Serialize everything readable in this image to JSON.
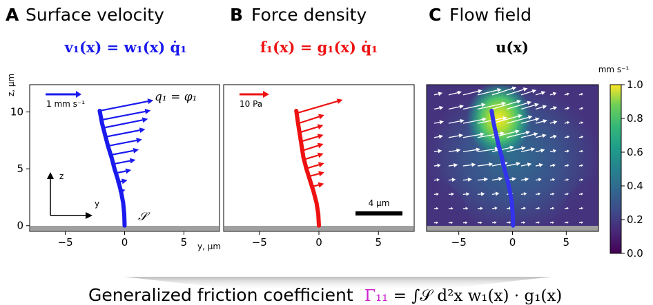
{
  "colors": {
    "velocity": "#1a1aee",
    "force": "#ee1111",
    "gamma": "#cc22cc",
    "ground": "#a0a0a0",
    "filament": "#3333ee",
    "flow_arrows": "#ffffff",
    "scale_bar": "#000000"
  },
  "panels": [
    {
      "letter": "A",
      "title": "Surface velocity",
      "equation": "v₁(x) = w₁(x) q̇₁",
      "annotation": "q₁ = φ₁",
      "scale_arrow_label": "1 mm s⁻¹",
      "surface_label": "𝒮",
      "axis_z": "z",
      "axis_y": "y"
    },
    {
      "letter": "B",
      "title": "Force density",
      "equation": "f₁(x) = g₁(x) q̇₁",
      "scale_arrow_label": "10 Pa",
      "scale_bar_label": "4 μm"
    },
    {
      "letter": "C",
      "title": "Flow field",
      "equation": "u(x)"
    }
  ],
  "colorbar": {
    "label": "mm s⁻¹",
    "ticks": [
      "0.0",
      "0.2",
      "0.4",
      "0.6",
      "0.8",
      "1.0"
    ],
    "min": 0.0,
    "max": 1.0,
    "colormap": "viridis"
  },
  "bottom": {
    "label": "Generalized friction coefficient",
    "equation": "Γ₁₁ = ∫𝒮 d²x w₁(x) · g₁(x)"
  },
  "chart_data": [
    {
      "type": "quiver",
      "panel": "A",
      "title": "Surface velocity",
      "xlabel": "y, μm",
      "ylabel": "z, μm",
      "xlim": [
        -8,
        8
      ],
      "ylim": [
        -0.5,
        12.4
      ],
      "xticks": [
        "−5",
        "0",
        "5"
      ],
      "yticks": [
        "0",
        "5",
        "10"
      ],
      "filament": {
        "z": [
          0,
          1,
          2,
          3,
          4,
          5,
          6,
          7,
          8,
          9,
          10.1
        ],
        "y": [
          0,
          -0.03,
          -0.12,
          -0.3,
          -0.55,
          -0.85,
          -1.1,
          -1.4,
          -1.65,
          -1.9,
          -2.1
        ]
      },
      "arrows": [
        {
          "y": -0.5,
          "z": 3.0,
          "dy": 0.6,
          "dz": 0.15
        },
        {
          "y": -0.7,
          "z": 3.8,
          "dy": 1.0,
          "dz": 0.2
        },
        {
          "y": -0.85,
          "z": 4.6,
          "dy": 1.5,
          "dz": 0.3
        },
        {
          "y": -1.05,
          "z": 5.4,
          "dy": 2.1,
          "dz": 0.4
        },
        {
          "y": -1.25,
          "z": 6.2,
          "dy": 2.6,
          "dz": 0.5
        },
        {
          "y": -1.45,
          "z": 7.0,
          "dy": 3.1,
          "dz": 0.6
        },
        {
          "y": -1.65,
          "z": 7.8,
          "dy": 3.6,
          "dz": 0.7
        },
        {
          "y": -1.8,
          "z": 8.6,
          "dy": 4.0,
          "dz": 0.8
        },
        {
          "y": -1.95,
          "z": 9.3,
          "dy": 4.4,
          "dz": 0.85
        },
        {
          "y": -2.1,
          "z": 10.1,
          "dy": 4.8,
          "dz": 0.95
        }
      ]
    },
    {
      "type": "quiver",
      "panel": "B",
      "title": "Force density",
      "xlabel": "",
      "ylabel": "",
      "xlim": [
        -8,
        8
      ],
      "ylim": [
        -0.5,
        12.4
      ],
      "xticks": [
        "−5",
        "0",
        "5"
      ],
      "filament": {
        "z": [
          0,
          1,
          2,
          3,
          4,
          5,
          6,
          7,
          8,
          9,
          10.1
        ],
        "y": [
          0,
          -0.05,
          -0.2,
          -0.45,
          -0.75,
          -1.05,
          -1.3,
          -1.45,
          -1.6,
          -1.75,
          -1.9
        ]
      },
      "arrows": [
        {
          "y": -0.7,
          "z": 3.4,
          "dy": 1.2,
          "dz": 0.3
        },
        {
          "y": -0.95,
          "z": 4.3,
          "dy": 1.5,
          "dz": 0.4
        },
        {
          "y": -1.15,
          "z": 5.0,
          "dy": 1.7,
          "dz": 0.5
        },
        {
          "y": -1.3,
          "z": 5.8,
          "dy": 1.8,
          "dz": 0.55
        },
        {
          "y": -1.4,
          "z": 6.6,
          "dy": 1.9,
          "dz": 0.6
        },
        {
          "y": -1.5,
          "z": 7.4,
          "dy": 2.0,
          "dz": 0.6
        },
        {
          "y": -1.6,
          "z": 8.2,
          "dy": 2.1,
          "dz": 0.65
        },
        {
          "y": -1.7,
          "z": 9.0,
          "dy": 2.3,
          "dz": 0.75
        },
        {
          "y": -1.85,
          "z": 9.9,
          "dy": 4.1,
          "dz": 1.2
        }
      ]
    },
    {
      "type": "heatmap",
      "panel": "C",
      "title": "Flow field",
      "xlim": [
        -8,
        8
      ],
      "ylim": [
        -0.5,
        12.4
      ],
      "xticks": [
        "−5",
        "0",
        "5"
      ],
      "colormap": "viridis",
      "vmin": 0.0,
      "vmax": 1.0,
      "peak": {
        "y": -2.3,
        "z": 9.3,
        "value": 1.0
      }
    }
  ]
}
